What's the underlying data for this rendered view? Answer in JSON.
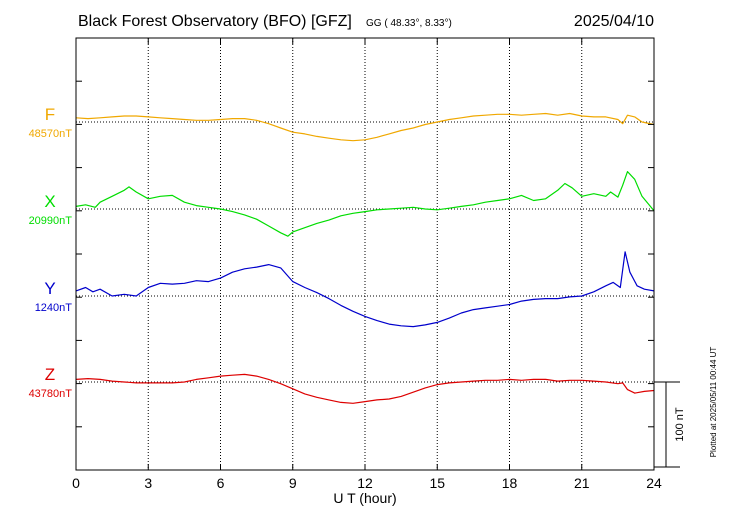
{
  "header": {
    "title": "Black Forest Observatory (BFO)  [GFZ]",
    "coords": "GG ( 48.33°,   8.33°)",
    "date": "2025/04/10"
  },
  "footer": {
    "plotted": "Plotted at 2025/05/11 00:44 UT"
  },
  "scale_bar": {
    "label": "100 nT",
    "value_nT": 100
  },
  "colors": {
    "F": "#f0a800",
    "X": "#00dd00",
    "Y": "#0000cc",
    "Z": "#dd0000",
    "axis": "#000000"
  },
  "chart_data": {
    "type": "line",
    "xlabel": "U T (hour)",
    "xlim": [
      0,
      24
    ],
    "xticks": [
      0,
      3,
      6,
      9,
      12,
      15,
      18,
      21,
      24
    ],
    "units": "nT",
    "grid": true,
    "series": [
      {
        "name": "F",
        "baseline_label": "48570nT",
        "baseline_nT": 48570,
        "x": [
          0,
          0.5,
          1,
          1.5,
          2,
          2.5,
          3,
          3.5,
          4,
          4.5,
          5,
          5.5,
          6,
          6.5,
          7,
          7.5,
          8,
          8.5,
          9,
          9.5,
          10,
          10.5,
          11,
          11.5,
          12,
          12.5,
          13,
          13.5,
          14,
          14.5,
          15,
          15.5,
          16,
          16.5,
          17,
          17.5,
          18,
          18.5,
          19,
          19.5,
          20,
          20.5,
          21,
          21.5,
          22,
          22.5,
          22.7,
          22.9,
          23.2,
          23.5,
          24
        ],
        "offset_nT": [
          5,
          4,
          5,
          6,
          7,
          7,
          6,
          5,
          4,
          3,
          2,
          2,
          3,
          4,
          4,
          2,
          -2,
          -7,
          -12,
          -14,
          -17,
          -19,
          -21,
          -22,
          -21,
          -18,
          -14,
          -10,
          -7,
          -3,
          0,
          3,
          5,
          7,
          8,
          9,
          9,
          8,
          9,
          10,
          8,
          10,
          7,
          6,
          6,
          3,
          -2,
          8,
          6,
          0,
          -3
        ]
      },
      {
        "name": "X",
        "baseline_label": "20990nT",
        "baseline_nT": 20990,
        "x": [
          0,
          0.4,
          0.8,
          1,
          1.5,
          2,
          2.2,
          2.5,
          3,
          3.5,
          4,
          4.5,
          5,
          5.5,
          6,
          6.5,
          7,
          7.5,
          8,
          8.5,
          8.8,
          9,
          9.5,
          10,
          10.5,
          11,
          11.5,
          12,
          12.5,
          13,
          13.5,
          14,
          14.5,
          15,
          15.5,
          16,
          16.5,
          17,
          17.5,
          18,
          18.5,
          19,
          19.5,
          20,
          20.3,
          20.6,
          21,
          21.5,
          22,
          22.2,
          22.5,
          22.7,
          22.9,
          23.2,
          23.5,
          24
        ],
        "offset_nT": [
          3,
          5,
          2,
          8,
          15,
          22,
          26,
          20,
          12,
          15,
          16,
          8,
          4,
          2,
          0,
          -3,
          -7,
          -12,
          -20,
          -28,
          -32,
          -27,
          -22,
          -17,
          -13,
          -8,
          -5,
          -3,
          -1,
          0,
          1,
          2,
          0,
          -1,
          1,
          3,
          5,
          8,
          10,
          12,
          16,
          10,
          12,
          22,
          30,
          25,
          15,
          18,
          15,
          20,
          14,
          28,
          44,
          35,
          15,
          -2
        ]
      },
      {
        "name": "Y",
        "baseline_label": "1240nT",
        "baseline_nT": 1240,
        "x": [
          0,
          0.4,
          0.7,
          1,
          1.5,
          2,
          2.5,
          3,
          3.5,
          4,
          4.5,
          5,
          5.5,
          6,
          6.5,
          7,
          7.5,
          8,
          8.5,
          9,
          9.5,
          10,
          10.5,
          11,
          11.5,
          12,
          12.5,
          13,
          13.5,
          14,
          14.5,
          15,
          15.5,
          16,
          16.5,
          17,
          17.5,
          18,
          18.5,
          19,
          19.5,
          20,
          20.5,
          21,
          21.5,
          22,
          22.3,
          22.6,
          22.8,
          23,
          23.3,
          23.6,
          24
        ],
        "offset_nT": [
          6,
          10,
          5,
          8,
          0,
          2,
          0,
          10,
          15,
          14,
          15,
          18,
          17,
          21,
          28,
          32,
          34,
          37,
          33,
          17,
          10,
          4,
          -3,
          -11,
          -18,
          -24,
          -29,
          -33,
          -35,
          -36,
          -34,
          -31,
          -26,
          -20,
          -16,
          -14,
          -12,
          -10,
          -6,
          -4,
          -3,
          -3,
          -1,
          0,
          5,
          12,
          16,
          10,
          52,
          28,
          12,
          8,
          6
        ]
      },
      {
        "name": "Z",
        "baseline_label": "43780nT",
        "baseline_nT": 43780,
        "x": [
          0,
          0.5,
          1,
          1.5,
          2,
          2.5,
          3,
          3.5,
          4,
          4.5,
          5,
          5.5,
          6,
          6.5,
          7,
          7.5,
          8,
          8.5,
          9,
          9.5,
          10,
          10.5,
          11,
          11.5,
          12,
          12.5,
          13,
          13.5,
          14,
          14.5,
          15,
          15.5,
          16,
          16.5,
          17,
          17.5,
          18,
          18.5,
          19,
          19.5,
          20,
          20.5,
          21,
          21.5,
          22,
          22.5,
          22.7,
          22.9,
          23.2,
          23.6,
          24
        ],
        "offset_nT": [
          3,
          4,
          3,
          1,
          0,
          -1,
          -1,
          -1,
          -1,
          0,
          3,
          5,
          7,
          8,
          9,
          7,
          3,
          -2,
          -8,
          -14,
          -18,
          -21,
          -24,
          -25,
          -23,
          -21,
          -20,
          -17,
          -12,
          -7,
          -3,
          -1,
          0,
          1,
          2,
          2,
          3,
          2,
          3,
          3,
          1,
          2,
          2,
          1,
          0,
          -2,
          -1,
          -9,
          -13,
          -11,
          -10
        ]
      }
    ]
  }
}
